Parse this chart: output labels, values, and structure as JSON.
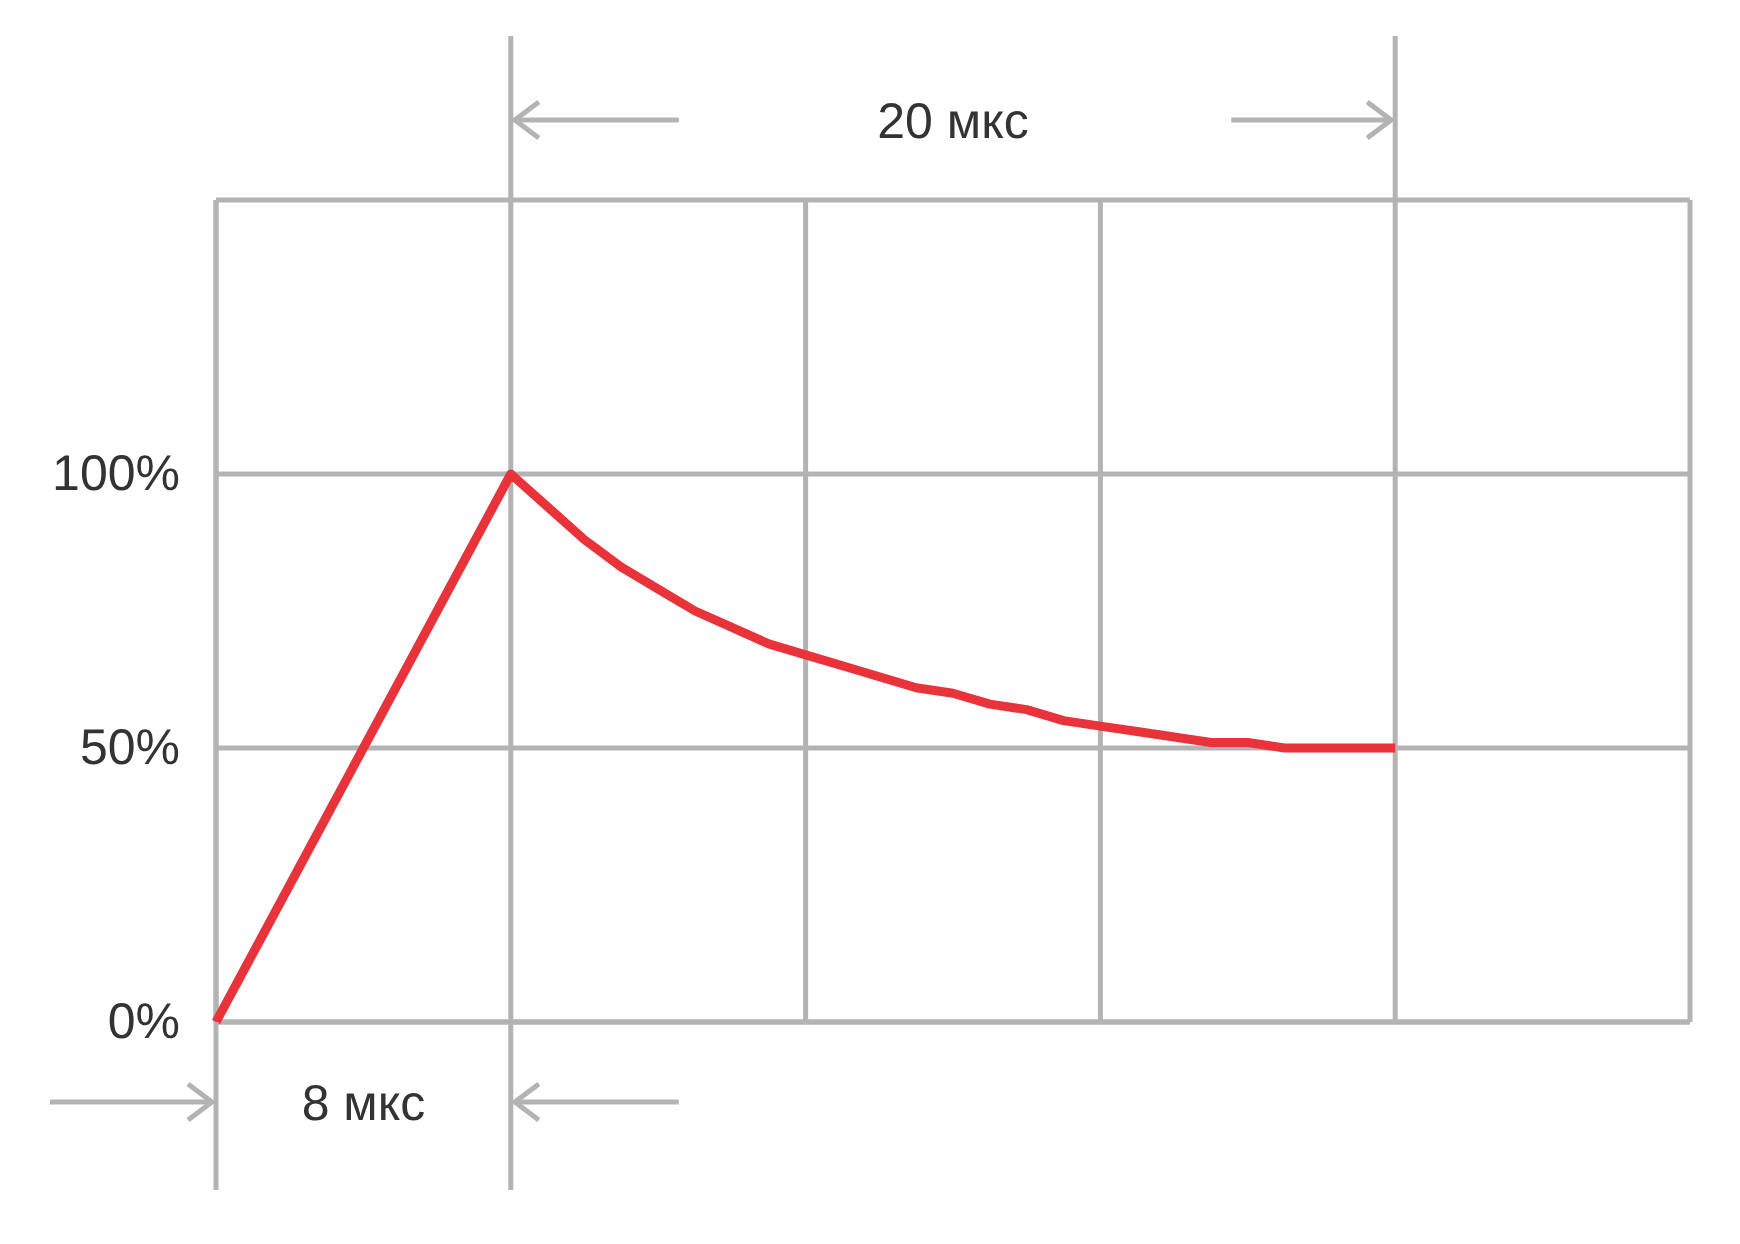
{
  "chart_data": {
    "type": "line",
    "categories": [
      null,
      null,
      null,
      null,
      null,
      null,
      null,
      null,
      null,
      null,
      null,
      null,
      null,
      null,
      null,
      null,
      null,
      null,
      null,
      null,
      null,
      null,
      null,
      null,
      null,
      null,
      null,
      null,
      null,
      null,
      null,
      null,
      null,
      null,
      null,
      null,
      null,
      null,
      null,
      null,
      null
    ],
    "series": [
      {
        "color": "#e8333a",
        "values": [
          0,
          12.5,
          25,
          37.5,
          50,
          62.5,
          75,
          87.5,
          100,
          94,
          88,
          83,
          79,
          75,
          72,
          69,
          67,
          65,
          63,
          61,
          60,
          58,
          57,
          55,
          54,
          53,
          52,
          51,
          51,
          50,
          50,
          50,
          50,
          null,
          null,
          null,
          null,
          null,
          null,
          null,
          null
        ]
      }
    ],
    "ylim": [
      0,
      150
    ],
    "yticks": [
      {
        "value": 0,
        "label": "0%"
      },
      {
        "value": 50,
        "label": "50%"
      },
      {
        "value": 100,
        "label": "100%"
      },
      {
        "value": 150,
        "label": null
      }
    ],
    "tick_labels": "y",
    "grid": true,
    "marker": "none",
    "line_style": "solid",
    "annotations": [
      "8 мкс",
      "20 мкс"
    ]
  }
}
